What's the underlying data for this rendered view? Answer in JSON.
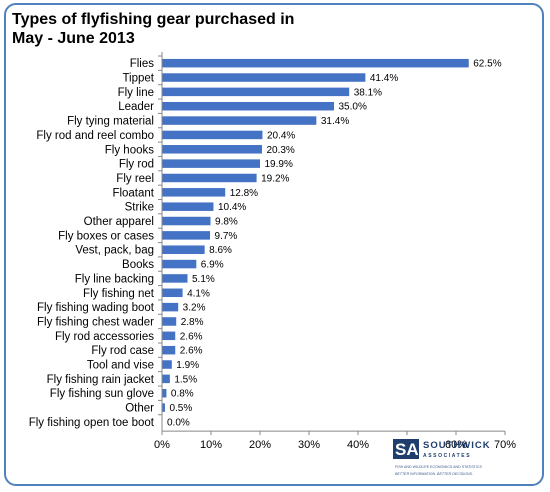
{
  "chart_data": {
    "type": "bar",
    "orientation": "horizontal",
    "title": "Types of flyfishing gear purchased in May - June 2013",
    "title_lines": [
      "Types of flyfishing gear purchased in",
      "May - June 2013"
    ],
    "categories": [
      "Flies",
      "Tippet",
      "Fly line",
      "Leader",
      "Fly tying material",
      "Fly rod and reel combo",
      "Fly hooks",
      "Fly rod",
      "Fly reel",
      "Floatant",
      "Strike",
      "Other apparel",
      "Fly boxes or cases",
      "Vest, pack, bag",
      "Books",
      "Fly line backing",
      "Fly fishing net",
      "Fly fishing wading boot",
      "Fly fishing chest wader",
      "Fly rod accessories",
      "Fly rod case",
      "Tool and vise",
      "Fly fishing rain jacket",
      "Fly fishing sun glove",
      "Other",
      "Fly fishing open toe boot"
    ],
    "values": [
      62.5,
      41.4,
      38.1,
      35.0,
      31.4,
      20.4,
      20.3,
      19.9,
      19.2,
      12.8,
      10.4,
      9.8,
      9.7,
      8.6,
      6.9,
      5.1,
      4.1,
      3.2,
      2.8,
      2.6,
      2.6,
      1.9,
      1.5,
      0.8,
      0.5,
      0.0
    ],
    "value_labels": [
      "62.5%",
      "41.4%",
      "38.1%",
      "35.0%",
      "31.4%",
      "20.4%",
      "20.3%",
      "19.9%",
      "19.2%",
      "12.8%",
      "10.4%",
      "9.8%",
      "9.7%",
      "8.6%",
      "6.9%",
      "5.1%",
      "4.1%",
      "3.2%",
      "2.8%",
      "2.6%",
      "2.6%",
      "1.9%",
      "1.5%",
      "0.8%",
      "0.5%",
      "0.0%"
    ],
    "xlim": [
      0,
      70
    ],
    "xticks": [
      "0%",
      "10%",
      "20%",
      "30%",
      "40%",
      "50%",
      "60%",
      "70%"
    ],
    "grid": false,
    "bar_color": "#4472c4",
    "legend": "none"
  },
  "logo": {
    "mark": "SA",
    "name": "SOUTHWICK",
    "name2": "ASSOCIATES",
    "subtitle": "FISH AND WILDLIFE ECONOMICS AND STATISTICS",
    "tagline": "BETTER INFORMATION. BETTER DECISIONS."
  },
  "colors": {
    "frame": "#4f81bd",
    "bar": "#4472c4",
    "logo_dark": "#1f3e6d",
    "logo_light": "#5b8fd0"
  }
}
